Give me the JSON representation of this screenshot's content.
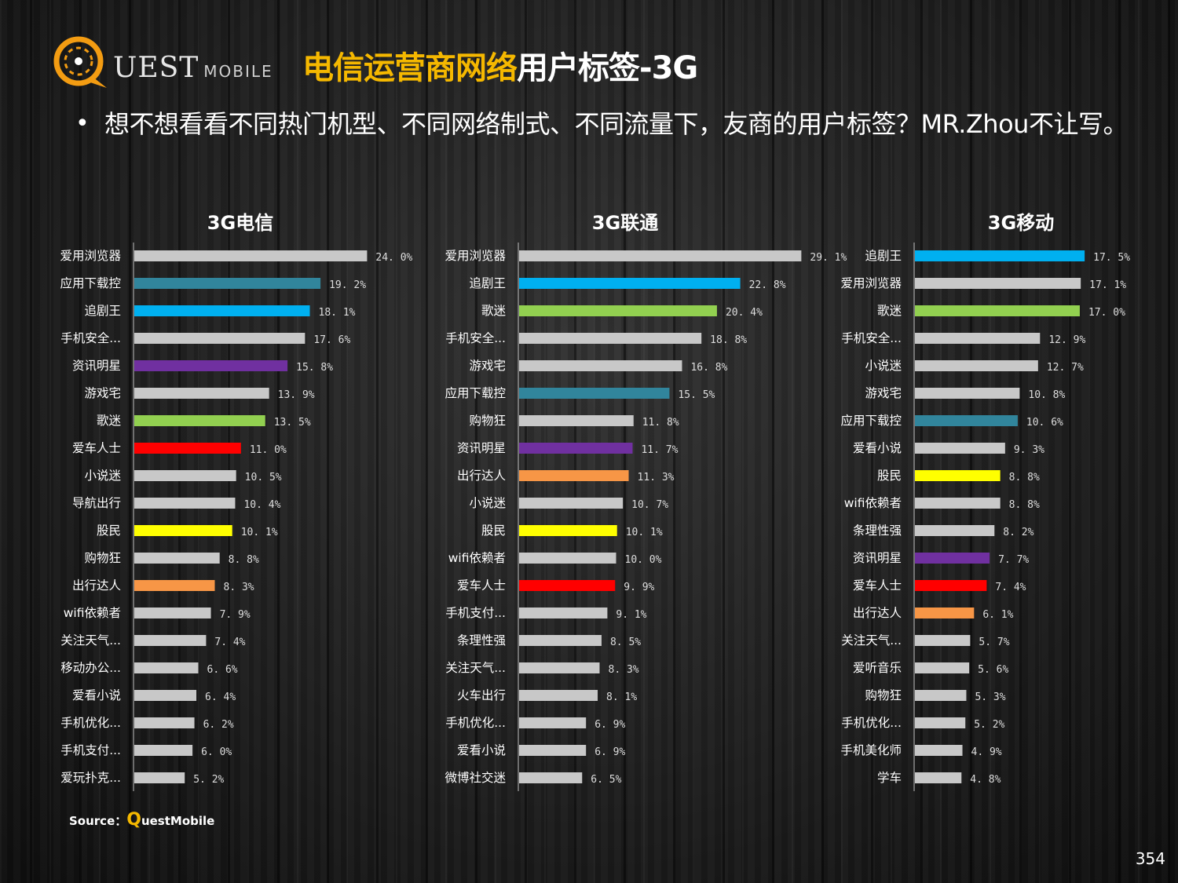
{
  "logo": {
    "text": "UEST",
    "small": "MOBILE"
  },
  "title": {
    "highlight": "电信运营商网络",
    "rest": "用户标签-3G"
  },
  "intro": {
    "bullet": "•",
    "text": "想不想看看不同热门机型、不同网络制式、不同流量下，友商的用户标签？MR.Zhou不让写。"
  },
  "source": {
    "prefix": "Source：",
    "brand_q": "Q",
    "brand_rest": "uestMobile"
  },
  "page_number": "354",
  "colors": {
    "gray": "#c8c8c8",
    "teal": "#31859c",
    "blue": "#00b0f0",
    "purple": "#7030a0",
    "green": "#92d050",
    "red": "#ff0000",
    "yellow": "#ffff00",
    "orange": "#f79646",
    "title_yellow": "#f5b800"
  },
  "chart_data": [
    {
      "type": "bar",
      "orientation": "horizontal",
      "title": "3G电信",
      "categories": [
        "爱用浏览器",
        "应用下载控",
        "追剧王",
        "手机安全...",
        "资讯明星",
        "游戏宅",
        "歌迷",
        "爱车人士",
        "小说迷",
        "导航出行",
        "股民",
        "购物狂",
        "出行达人",
        "wifi依赖者",
        "关注天气...",
        "移动办公...",
        "爱看小说",
        "手机优化...",
        "手机支付...",
        "爱玩扑克..."
      ],
      "values": [
        24.0,
        19.2,
        18.1,
        17.6,
        15.8,
        13.9,
        13.5,
        11.0,
        10.5,
        10.4,
        10.1,
        8.8,
        8.3,
        7.9,
        7.4,
        6.6,
        6.4,
        6.2,
        6.0,
        5.2
      ],
      "value_labels": [
        "24. 0%",
        "19. 2%",
        "18. 1%",
        "17. 6%",
        "15. 8%",
        "13. 9%",
        "13. 5%",
        "11. 0%",
        "10. 5%",
        "10. 4%",
        "10. 1%",
        "8. 8%",
        "8. 3%",
        "7. 9%",
        "7. 4%",
        "6. 6%",
        "6. 4%",
        "6. 2%",
        "6. 0%",
        "5. 2%"
      ],
      "bar_colors": [
        "gray",
        "teal",
        "blue",
        "gray",
        "purple",
        "gray",
        "green",
        "red",
        "gray",
        "gray",
        "yellow",
        "gray",
        "orange",
        "gray",
        "gray",
        "gray",
        "gray",
        "gray",
        "gray",
        "gray"
      ],
      "unit": "%"
    },
    {
      "type": "bar",
      "orientation": "horizontal",
      "title": "3G联通",
      "categories": [
        "爱用浏览器",
        "追剧王",
        "歌迷",
        "手机安全...",
        "游戏宅",
        "应用下载控",
        "购物狂",
        "资讯明星",
        "出行达人",
        "小说迷",
        "股民",
        "wifi依赖者",
        "爱车人士",
        "手机支付...",
        "条理性强",
        "关注天气...",
        "火车出行",
        "手机优化...",
        "爱看小说",
        "微博社交迷"
      ],
      "values": [
        29.1,
        22.8,
        20.4,
        18.8,
        16.8,
        15.5,
        11.8,
        11.7,
        11.3,
        10.7,
        10.1,
        10.0,
        9.9,
        9.1,
        8.5,
        8.3,
        8.1,
        6.9,
        6.9,
        6.5
      ],
      "value_labels": [
        "29. 1%",
        "22. 8%",
        "20. 4%",
        "18. 8%",
        "16. 8%",
        "15. 5%",
        "11. 8%",
        "11. 7%",
        "11. 3%",
        "10. 7%",
        "10. 1%",
        "10. 0%",
        "9. 9%",
        "9. 1%",
        "8. 5%",
        "8. 3%",
        "8. 1%",
        "6. 9%",
        "6. 9%",
        "6. 5%"
      ],
      "bar_colors": [
        "gray",
        "blue",
        "green",
        "gray",
        "gray",
        "teal",
        "gray",
        "purple",
        "orange",
        "gray",
        "yellow",
        "gray",
        "red",
        "gray",
        "gray",
        "gray",
        "gray",
        "gray",
        "gray",
        "gray"
      ],
      "unit": "%"
    },
    {
      "type": "bar",
      "orientation": "horizontal",
      "title": "3G移动",
      "categories": [
        "追剧王",
        "爱用浏览器",
        "歌迷",
        "手机安全...",
        "小说迷",
        "游戏宅",
        "应用下载控",
        "爱看小说",
        "股民",
        "wifi依赖者",
        "条理性强",
        "资讯明星",
        "爱车人士",
        "出行达人",
        "关注天气...",
        "爱听音乐",
        "购物狂",
        "手机优化...",
        "手机美化师",
        "学车"
      ],
      "values": [
        17.5,
        17.1,
        17.0,
        12.9,
        12.7,
        10.8,
        10.6,
        9.3,
        8.8,
        8.8,
        8.2,
        7.7,
        7.4,
        6.1,
        5.7,
        5.6,
        5.3,
        5.2,
        4.9,
        4.8
      ],
      "value_labels": [
        "17. 5%",
        "17. 1%",
        "17. 0%",
        "12. 9%",
        "12. 7%",
        "10. 8%",
        "10. 6%",
        "9. 3%",
        "8. 8%",
        "8. 8%",
        "8. 2%",
        "7. 7%",
        "7. 4%",
        "6. 1%",
        "5. 7%",
        "5. 6%",
        "5. 3%",
        "5. 2%",
        "4. 9%",
        "4. 8%"
      ],
      "bar_colors": [
        "blue",
        "gray",
        "green",
        "gray",
        "gray",
        "gray",
        "teal",
        "gray",
        "yellow",
        "gray",
        "gray",
        "purple",
        "red",
        "orange",
        "gray",
        "gray",
        "gray",
        "gray",
        "gray",
        "gray"
      ],
      "unit": "%"
    }
  ]
}
